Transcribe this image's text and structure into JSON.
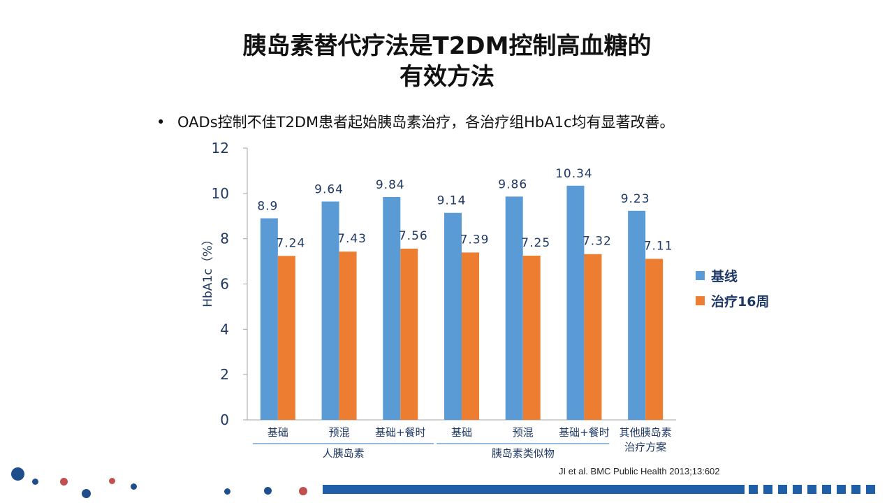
{
  "slide": {
    "title_line1": "胰岛素替代疗法是T2DM控制高血糖的",
    "title_line2": "有效方法",
    "bullet_marker": "•",
    "bullet_text": "OADs控制不佳T2DM患者起始胰岛素治疗，各治疗组HbA1c均有显著改善。",
    "citation": "JI et al. BMC Public Health 2013;13:602"
  },
  "colors": {
    "baseline": "#5b9bd5",
    "treatment": "#ed7d31",
    "axis_text": "#1f3864",
    "footer": "#1f5fa8",
    "dot_red": "#c0504d"
  },
  "chart_data": {
    "type": "bar",
    "ylabel": "HbA1c（%）",
    "ylim": [
      0,
      12
    ],
    "yticks": [
      0,
      2,
      4,
      6,
      8,
      10,
      12
    ],
    "categories": [
      "基础",
      "预混",
      "基础+餐时",
      "基础",
      "预混",
      "基础+餐时",
      "其他胰岛素治疗方案"
    ],
    "category_groups": [
      {
        "label": "人胰岛素",
        "span": [
          0,
          2
        ]
      },
      {
        "label": "胰岛素类似物",
        "span": [
          3,
          5
        ]
      }
    ],
    "series": [
      {
        "name": "基线",
        "values": [
          8.9,
          9.64,
          9.84,
          9.14,
          9.86,
          10.34,
          9.23
        ],
        "labels": [
          "8.9",
          "9.64",
          "9.84",
          "9.14",
          "9.86",
          "10.34",
          "9.23"
        ]
      },
      {
        "name": "治疗16周",
        "values": [
          7.24,
          7.43,
          7.56,
          7.39,
          7.25,
          7.32,
          7.11
        ],
        "labels": [
          "7.24",
          "7.43",
          "7.56",
          "7.39",
          "7.25",
          "7.32",
          "7.11"
        ]
      }
    ],
    "legend_position": "right",
    "grid": false
  }
}
